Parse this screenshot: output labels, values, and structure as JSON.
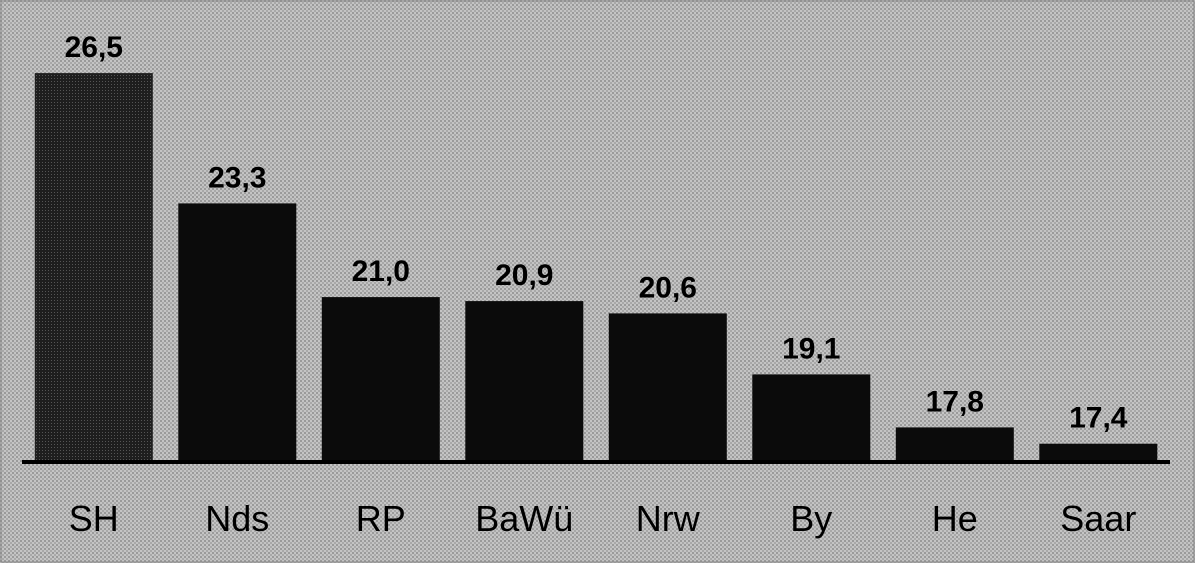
{
  "chart_data": {
    "type": "bar",
    "title": "",
    "xlabel": "",
    "ylabel": "",
    "categories": [
      "SH",
      "Nds",
      "RP",
      "BaWü",
      "Nrw",
      "By",
      "He",
      "Saar"
    ],
    "values": [
      26.5,
      23.3,
      21.0,
      20.9,
      20.6,
      19.1,
      17.8,
      17.4
    ],
    "value_labels": [
      "26,5",
      "23,3",
      "21,0",
      "20,9",
      "20,6",
      "19,1",
      "17,8",
      "17,4"
    ],
    "ylim": [
      16.95,
      28.0
    ],
    "grid": false,
    "legend": "none",
    "colors": {
      "background": "#b9b9b9",
      "bar_highlight": "#2d2d2d",
      "bar": "#0b0b0b",
      "baseline": "#000000",
      "text": "#000000"
    }
  }
}
